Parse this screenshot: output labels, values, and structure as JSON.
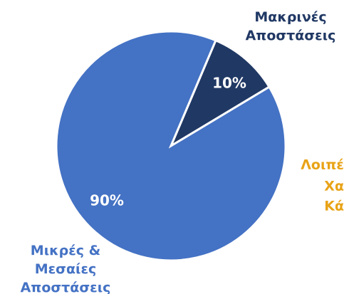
{
  "chart_data": {
    "type": "pie",
    "categories": [
      "Μακρινές\nΑποστάσεις",
      "Μικρές &\nΜεσαίες\nΑποστάσεις"
    ],
    "values": [
      10,
      90
    ],
    "value_labels": [
      "10%",
      "90%"
    ],
    "colors": [
      "#203864",
      "#4472c4"
    ],
    "annotations": [
      "Λοιπέ",
      "Χα",
      "Κά"
    ],
    "annotation_color": "#e8a317"
  }
}
